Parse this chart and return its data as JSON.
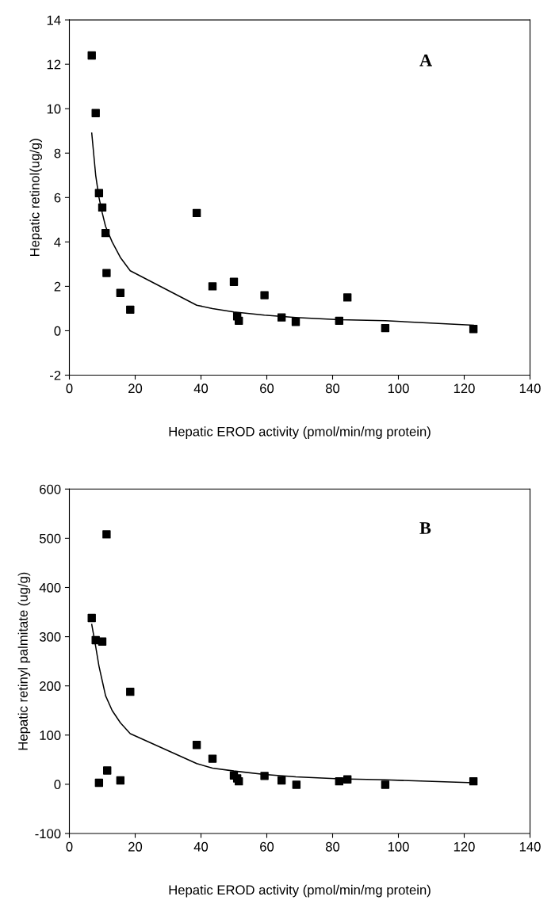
{
  "chart_data": [
    {
      "type": "scatter",
      "xlabel": "Hepatic EROD activity (pmol/min/mg protein)",
      "ylabel": "Hepatic retinol(ug/g)",
      "annotations": [
        "A"
      ],
      "grid": false,
      "legend": false,
      "xlim": [
        0,
        140
      ],
      "xticks": [
        0,
        20,
        40,
        60,
        80,
        100,
        120,
        140
      ],
      "ylim": [
        -2,
        14
      ],
      "yticks": [
        -2,
        0,
        2,
        4,
        6,
        8,
        10,
        12,
        14
      ],
      "series": [
        {
          "marker": "square",
          "color": "#000000",
          "x": [
            6.8,
            8,
            9,
            10,
            11,
            11.3,
            15.5,
            18.5,
            38.7,
            43.5,
            50,
            51,
            51.5,
            59.3,
            64.5,
            68.8,
            82,
            84.5,
            96,
            122.8
          ],
          "values": [
            12.4,
            9.8,
            6.2,
            5.55,
            4.4,
            2.6,
            1.7,
            0.95,
            5.3,
            2.0,
            2.2,
            0.65,
            0.45,
            1.6,
            0.6,
            0.4,
            0.45,
            1.5,
            0.12,
            0.08
          ]
        },
        {
          "type": "line",
          "marker": "none",
          "color": "#000000",
          "x": [
            6.8,
            8,
            9,
            10,
            11,
            13,
            15.5,
            18.5,
            38.7,
            43.5,
            50,
            59.3,
            68.8,
            82,
            96,
            122.8
          ],
          "values": [
            8.9,
            7.0,
            6.0,
            5.3,
            4.7,
            4.0,
            3.3,
            2.7,
            1.15,
            1.0,
            0.85,
            0.7,
            0.6,
            0.5,
            0.45,
            0.25
          ]
        }
      ]
    },
    {
      "type": "scatter",
      "xlabel": "Hepatic EROD activity (pmol/min/mg protein)",
      "ylabel": "Hepatic retinyl palmitate (ug/g)",
      "annotations": [
        "B"
      ],
      "grid": false,
      "legend": false,
      "xlim": [
        0,
        140
      ],
      "xticks": [
        0,
        20,
        40,
        60,
        80,
        100,
        120,
        140
      ],
      "ylim": [
        -100,
        600
      ],
      "yticks": [
        -100,
        0,
        100,
        200,
        300,
        400,
        500,
        600
      ],
      "series": [
        {
          "marker": "square",
          "color": "#000000",
          "x": [
            6.8,
            8,
            9,
            10,
            11.3,
            11.5,
            15.5,
            18.5,
            38.7,
            43.5,
            50,
            51,
            51.5,
            59.3,
            64.5,
            69,
            82,
            84.5,
            96,
            122.8
          ],
          "values": [
            338,
            293,
            3,
            290,
            508,
            28,
            8,
            188,
            80,
            52,
            18,
            12,
            6,
            17,
            8,
            -1,
            6,
            10,
            -1,
            6
          ]
        },
        {
          "type": "line",
          "marker": "none",
          "color": "#000000",
          "x": [
            6.8,
            8,
            9,
            10,
            11,
            13,
            15.5,
            18.5,
            38.7,
            43.5,
            50,
            59.3,
            68.8,
            82,
            96,
            122.8
          ],
          "values": [
            325,
            280,
            240,
            210,
            180,
            150,
            125,
            103,
            42,
            33,
            27,
            20,
            15,
            11,
            9,
            3
          ]
        }
      ]
    }
  ]
}
